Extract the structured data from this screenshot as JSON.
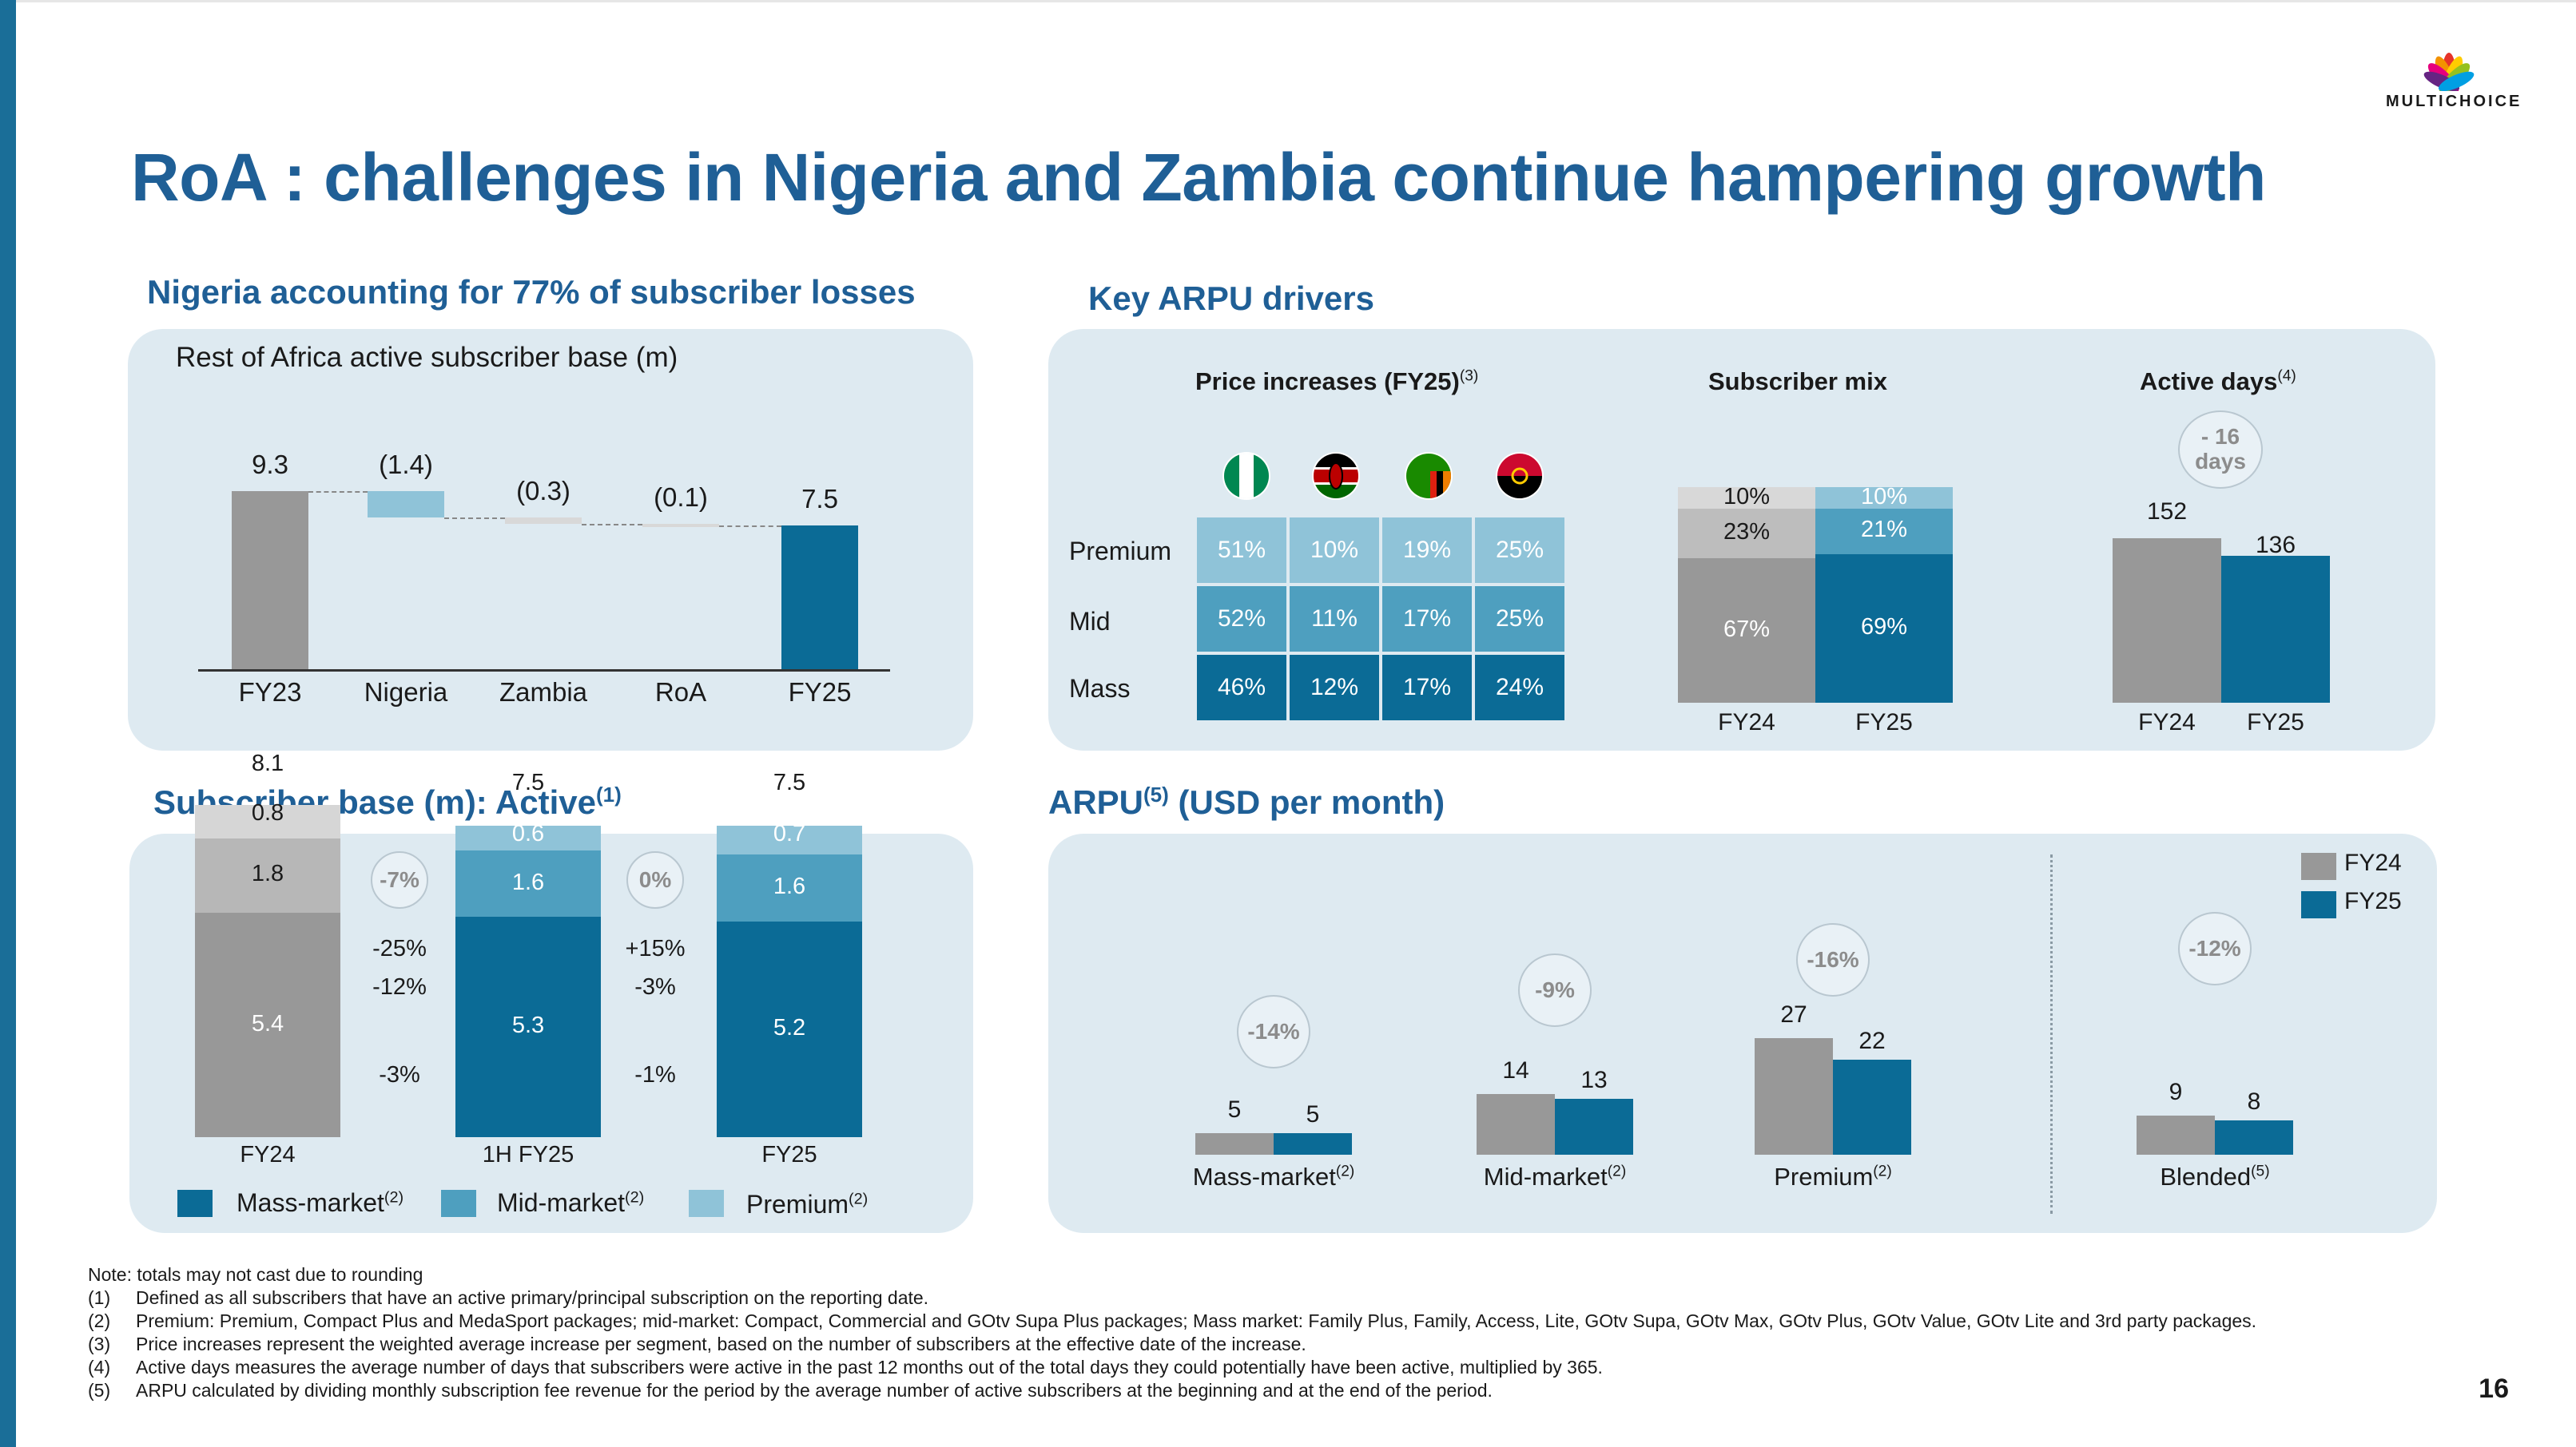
{
  "slide": {
    "title": "RoA : challenges in Nigeria and Zambia continue hampering growth",
    "page_number": "16",
    "logo_text": "MULTICHOICE",
    "colors": {
      "dark_blue": "#0b6b96",
      "mid_blue": "#4e9fbf",
      "light_blue": "#8fc3d8",
      "grey": "#989898",
      "light_grey": "#d8d8d8",
      "title_blue": "#1f5f96",
      "panel": "#deeaf1"
    }
  },
  "sections": {
    "top_left": "Nigeria accounting for 77% of subscriber losses",
    "top_right": "Key ARPU drivers",
    "bottom_left_main": "Subscriber base (m): Active",
    "bottom_left_sup": "(1)",
    "bottom_right_main": "ARPU",
    "bottom_right_sup": "(5)",
    "bottom_right_tail": "(USD per month)"
  },
  "chart_data": [
    {
      "type": "bar",
      "subtype": "waterfall",
      "title": "Rest of Africa active subscriber base (m)",
      "categories": [
        "FY23",
        "Nigeria",
        "Zambia",
        "RoA",
        "FY25"
      ],
      "values": [
        9.3,
        -1.4,
        -0.3,
        -0.1,
        7.5
      ],
      "labels": [
        "9.3",
        "(1.4)",
        "(0.3)",
        "(0.1)",
        "7.5"
      ]
    },
    {
      "type": "table",
      "title": "Price increases (FY25)",
      "title_sup": "(3)",
      "columns": [
        "Nigeria",
        "Kenya",
        "Zambia",
        "Angola"
      ],
      "rows": [
        {
          "segment": "Premium",
          "values": [
            "51%",
            "10%",
            "19%",
            "25%"
          ]
        },
        {
          "segment": "Mid",
          "values": [
            "52%",
            "11%",
            "17%",
            "25%"
          ]
        },
        {
          "segment": "Mass",
          "values": [
            "46%",
            "12%",
            "17%",
            "24%"
          ]
        }
      ]
    },
    {
      "type": "bar",
      "subtype": "stacked_percent",
      "title": "Subscriber mix",
      "categories": [
        "FY24",
        "FY25"
      ],
      "series": [
        {
          "name": "Mass",
          "values": [
            67,
            69
          ]
        },
        {
          "name": "Mid",
          "values": [
            23,
            21
          ]
        },
        {
          "name": "Premium",
          "values": [
            10,
            10
          ]
        }
      ]
    },
    {
      "type": "bar",
      "title": "Active days",
      "title_sup": "(4)",
      "categories": [
        "FY24",
        "FY25"
      ],
      "values": [
        152,
        136
      ],
      "annotation": "- 16 days"
    },
    {
      "type": "bar",
      "subtype": "stacked",
      "title": "Subscriber base (m): Active",
      "categories": [
        "FY24",
        "1H FY25",
        "FY25"
      ],
      "totals": [
        8.1,
        7.5,
        7.5
      ],
      "series": [
        {
          "name": "Mass-market",
          "sup": "(2)",
          "values": [
            5.4,
            5.3,
            5.2
          ]
        },
        {
          "name": "Mid-market",
          "sup": "(2)",
          "values": [
            1.8,
            1.6,
            1.6
          ]
        },
        {
          "name": "Premium",
          "sup": "(2)",
          "values": [
            0.8,
            0.6,
            0.7
          ]
        }
      ],
      "changes": [
        {
          "total": "-7%",
          "premium": "-25%",
          "mid": "-12%",
          "mass": "-3%"
        },
        {
          "total": "0%",
          "premium": "+15%",
          "mid": "-3%",
          "mass": "-1%"
        }
      ]
    },
    {
      "type": "bar",
      "subtype": "grouped",
      "title": "ARPU (USD per month)",
      "categories": [
        "Mass-market",
        "Mid-market",
        "Premium",
        "Blended"
      ],
      "category_sups": [
        "(2)",
        "(2)",
        "(2)",
        "(5)"
      ],
      "series": [
        {
          "name": "FY24",
          "values": [
            5,
            14,
            27,
            9
          ]
        },
        {
          "name": "FY25",
          "values": [
            5,
            13,
            22,
            8
          ]
        }
      ],
      "changes": [
        "-14%",
        "-9%",
        "-16%",
        "-12%"
      ]
    }
  ],
  "notes": {
    "note": "Note: totals may not cast due to rounding",
    "items": [
      {
        "n": "(1)",
        "text": "Defined as all subscribers that have an active primary/principal subscription on the reporting date."
      },
      {
        "n": "(2)",
        "text": "Premium: Premium, Compact Plus and MedaSport packages; mid-market: Compact, Commercial and GOtv Supa Plus packages; Mass market: Family Plus, Family, Access, Lite, GOtv Supa, GOtv Max, GOtv Plus, GOtv Value, GOtv Lite and 3rd party packages."
      },
      {
        "n": "(3)",
        "text": "Price increases represent the weighted average increase per segment, based on the number of subscribers at the effective date of the increase."
      },
      {
        "n": "(4)",
        "text": "Active days measures the average number of days that subscribers were active in the past 12 months out of the total days they could potentially have been active, multiplied by 365."
      },
      {
        "n": "(5)",
        "text": "ARPU calculated by dividing monthly subscription fee revenue for the period by the average number of active subscribers at the beginning and at the end of the period."
      }
    ]
  }
}
